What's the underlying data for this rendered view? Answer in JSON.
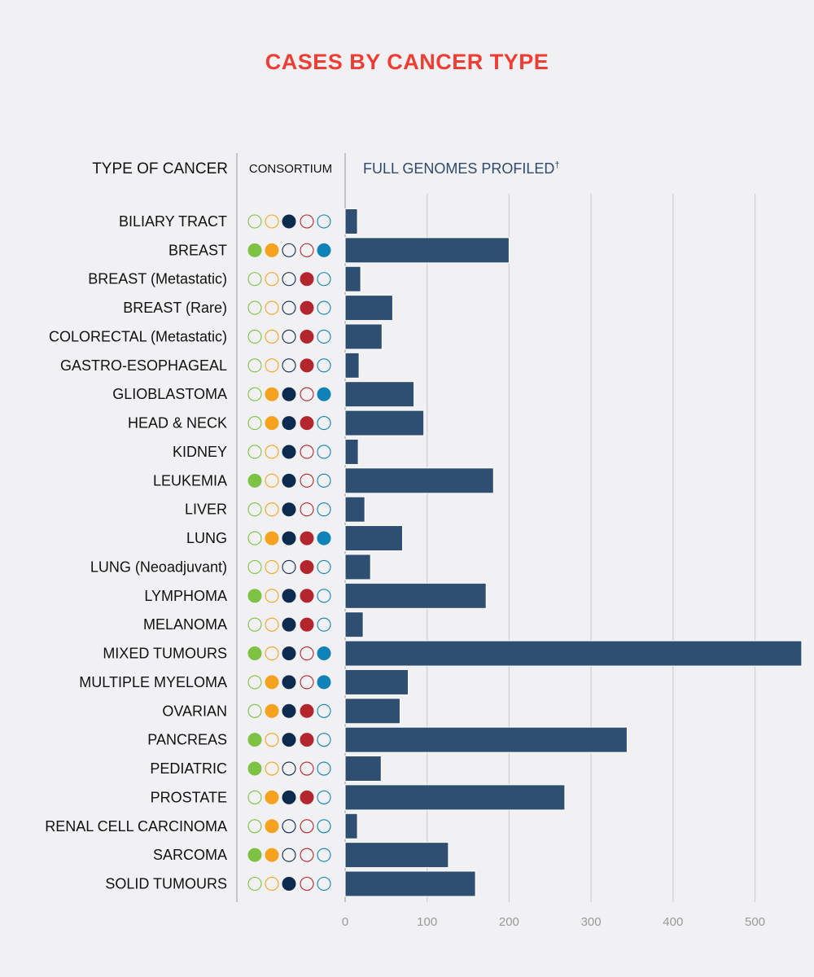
{
  "chart_data": {
    "type": "bar",
    "orientation": "horizontal",
    "title": "CASES BY CANCER TYPE",
    "category_header": "TYPE OF CANCER",
    "consortium_header": "CONSORTIUM",
    "value_header": "FULL GENOMES PROFILED",
    "value_header_mark": "†",
    "xlim": [
      0,
      560
    ],
    "xticks": [
      0,
      100,
      200,
      300,
      400,
      500
    ],
    "grid": true,
    "consortium_colors": [
      "#7dc242",
      "#f5a21f",
      "#0d2a4f",
      "#b3262e",
      "#0f83b8"
    ],
    "categories": [
      "BILIARY TRACT",
      "BREAST",
      "BREAST (Metastatic)",
      "BREAST (Rare)",
      "COLORECTAL (Metastatic)",
      "GASTRO-ESOPHAGEAL",
      "GLIOBLASTOMA",
      "HEAD & NECK",
      "KIDNEY",
      "LEUKEMIA",
      "LIVER",
      "LUNG",
      "LUNG (Neoadjuvant)",
      "LYMPHOMA",
      "MELANOMA",
      "MIXED TUMOURS",
      "MULTIPLE MYELOMA",
      "OVARIAN",
      "PANCREAS",
      "PEDIATRIC",
      "PROSTATE",
      "RENAL CELL CARCINOMA",
      "SARCOMA",
      "SOLID TUMOURS"
    ],
    "values": [
      15,
      200,
      19,
      58,
      45,
      17,
      84,
      96,
      16,
      181,
      24,
      70,
      31,
      172,
      22,
      557,
      77,
      67,
      344,
      44,
      268,
      15,
      126,
      159
    ],
    "consortium": [
      [
        0,
        0,
        1,
        0,
        0
      ],
      [
        1,
        1,
        0,
        0,
        1
      ],
      [
        0,
        0,
        0,
        1,
        0
      ],
      [
        0,
        0,
        0,
        1,
        0
      ],
      [
        0,
        0,
        0,
        1,
        0
      ],
      [
        0,
        0,
        0,
        1,
        0
      ],
      [
        0,
        1,
        1,
        0,
        1
      ],
      [
        0,
        1,
        1,
        1,
        0
      ],
      [
        0,
        0,
        1,
        0,
        0
      ],
      [
        1,
        0,
        1,
        0,
        0
      ],
      [
        0,
        0,
        1,
        0,
        0
      ],
      [
        0,
        1,
        1,
        1,
        1
      ],
      [
        0,
        0,
        0,
        1,
        0
      ],
      [
        1,
        0,
        1,
        1,
        0
      ],
      [
        0,
        0,
        1,
        1,
        0
      ],
      [
        1,
        0,
        1,
        0,
        1
      ],
      [
        0,
        1,
        1,
        0,
        1
      ],
      [
        0,
        1,
        1,
        1,
        0
      ],
      [
        1,
        0,
        1,
        1,
        0
      ],
      [
        1,
        0,
        0,
        0,
        0
      ],
      [
        0,
        1,
        1,
        1,
        0
      ],
      [
        0,
        1,
        0,
        0,
        0
      ],
      [
        1,
        1,
        0,
        0,
        0
      ],
      [
        0,
        0,
        1,
        0,
        0
      ]
    ]
  }
}
